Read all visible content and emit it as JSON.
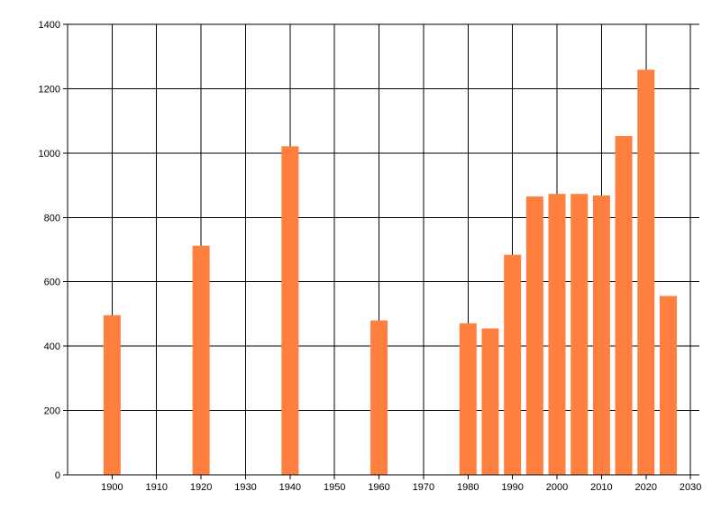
{
  "chart_data": {
    "type": "bar",
    "title": "",
    "xlabel": "",
    "ylabel": "",
    "x": [
      1900,
      1920,
      1940,
      1960,
      1980,
      1985,
      1990,
      1995,
      2000,
      2005,
      2010,
      2015,
      2020,
      2025
    ],
    "values": [
      496,
      712,
      1021,
      480,
      471,
      455,
      684,
      865,
      873,
      873,
      868,
      1053,
      1259,
      556
    ],
    "xlim": [
      1890,
      2032
    ],
    "ylim": [
      0,
      1400
    ],
    "xticks": [
      1900,
      1910,
      1920,
      1930,
      1940,
      1950,
      1960,
      1970,
      1980,
      1990,
      2000,
      2010,
      2020,
      2030
    ],
    "xtick_labels": [
      "1900",
      "1910",
      "1920",
      "1930",
      "1940",
      "1950",
      "1960",
      "1970",
      "1980",
      "1990",
      "2000",
      "2010",
      "2020",
      "2030"
    ],
    "yticks": [
      0,
      200,
      400,
      600,
      800,
      1000,
      1200,
      1400
    ],
    "ytick_labels": [
      "0",
      "200",
      "400",
      "600",
      "800",
      "1000",
      "1200",
      "1400"
    ],
    "grid": true,
    "legend": "none",
    "bar_color": "#ff7f3f",
    "grid_color": "#000000"
  }
}
